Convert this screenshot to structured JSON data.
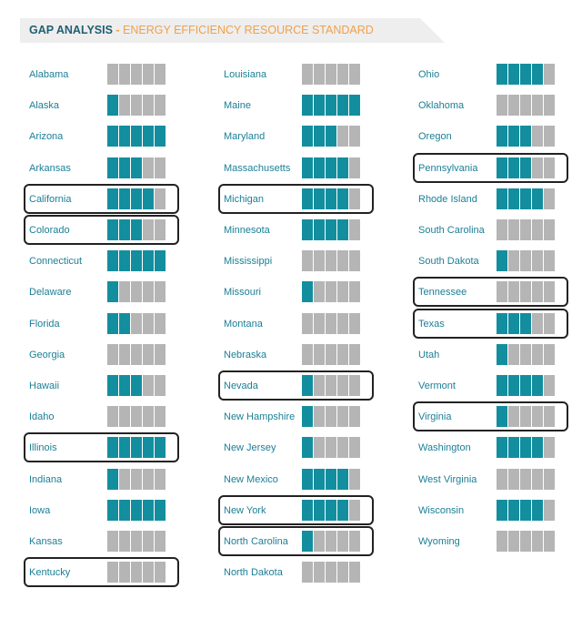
{
  "header": {
    "title_main": "GAP ANALYSIS",
    "title_sep": " - ",
    "title_sub": "ENERGY EFFICIENCY RESOURCE STANDARD"
  },
  "colors": {
    "filled": "#138e9e",
    "empty": "#b5b5b5",
    "label": "#1b7f96",
    "title": "#1f5f73",
    "accent": "#f0a04b"
  },
  "chart_data": {
    "type": "table",
    "max_score": 5,
    "columns": [
      [
        {
          "state": "Alabama",
          "score": 0,
          "highlighted": false
        },
        {
          "state": "Alaska",
          "score": 1,
          "highlighted": false
        },
        {
          "state": "Arizona",
          "score": 5,
          "highlighted": false
        },
        {
          "state": "Arkansas",
          "score": 3,
          "highlighted": false
        },
        {
          "state": "California",
          "score": 4,
          "highlighted": true
        },
        {
          "state": "Colorado",
          "score": 3,
          "highlighted": true
        },
        {
          "state": "Connecticut",
          "score": 5,
          "highlighted": false
        },
        {
          "state": "Delaware",
          "score": 1,
          "highlighted": false
        },
        {
          "state": "Florida",
          "score": 2,
          "highlighted": false
        },
        {
          "state": "Georgia",
          "score": 0,
          "highlighted": false
        },
        {
          "state": "Hawaii",
          "score": 3,
          "highlighted": false
        },
        {
          "state": "Idaho",
          "score": 0,
          "highlighted": false
        },
        {
          "state": "Illinois",
          "score": 5,
          "highlighted": true
        },
        {
          "state": "Indiana",
          "score": 1,
          "highlighted": false
        },
        {
          "state": "Iowa",
          "score": 5,
          "highlighted": false
        },
        {
          "state": "Kansas",
          "score": 0,
          "highlighted": false
        },
        {
          "state": "Kentucky",
          "score": 0,
          "highlighted": true
        }
      ],
      [
        {
          "state": "Louisiana",
          "score": 0,
          "highlighted": false
        },
        {
          "state": "Maine",
          "score": 5,
          "highlighted": false
        },
        {
          "state": "Maryland",
          "score": 3,
          "highlighted": false
        },
        {
          "state": "Massachusetts",
          "score": 4,
          "highlighted": false
        },
        {
          "state": "Michigan",
          "score": 4,
          "highlighted": true
        },
        {
          "state": "Minnesota",
          "score": 4,
          "highlighted": false
        },
        {
          "state": "Mississippi",
          "score": 0,
          "highlighted": false
        },
        {
          "state": "Missouri",
          "score": 1,
          "highlighted": false
        },
        {
          "state": "Montana",
          "score": 0,
          "highlighted": false
        },
        {
          "state": "Nebraska",
          "score": 0,
          "highlighted": false
        },
        {
          "state": "Nevada",
          "score": 1,
          "highlighted": true
        },
        {
          "state": "New Hampshire",
          "score": 1,
          "highlighted": false
        },
        {
          "state": "New Jersey",
          "score": 1,
          "highlighted": false
        },
        {
          "state": "New Mexico",
          "score": 4,
          "highlighted": false
        },
        {
          "state": "New York",
          "score": 4,
          "highlighted": true
        },
        {
          "state": "North Carolina",
          "score": 1,
          "highlighted": true
        },
        {
          "state": "North Dakota",
          "score": 0,
          "highlighted": false
        }
      ],
      [
        {
          "state": "Ohio",
          "score": 4,
          "highlighted": false
        },
        {
          "state": "Oklahoma",
          "score": 0,
          "highlighted": false
        },
        {
          "state": "Oregon",
          "score": 3,
          "highlighted": false
        },
        {
          "state": "Pennsylvania",
          "score": 3,
          "highlighted": true
        },
        {
          "state": "Rhode Island",
          "score": 4,
          "highlighted": false
        },
        {
          "state": "South Carolina",
          "score": 0,
          "highlighted": false
        },
        {
          "state": "South Dakota",
          "score": 1,
          "highlighted": false
        },
        {
          "state": "Tennessee",
          "score": 0,
          "highlighted": true
        },
        {
          "state": "Texas",
          "score": 3,
          "highlighted": true
        },
        {
          "state": "Utah",
          "score": 1,
          "highlighted": false
        },
        {
          "state": "Vermont",
          "score": 4,
          "highlighted": false
        },
        {
          "state": "Virginia",
          "score": 1,
          "highlighted": true
        },
        {
          "state": "Washington",
          "score": 4,
          "highlighted": false
        },
        {
          "state": "West Virginia",
          "score": 0,
          "highlighted": false
        },
        {
          "state": "Wisconsin",
          "score": 4,
          "highlighted": false
        },
        {
          "state": "Wyoming",
          "score": 0,
          "highlighted": false
        }
      ]
    ]
  }
}
